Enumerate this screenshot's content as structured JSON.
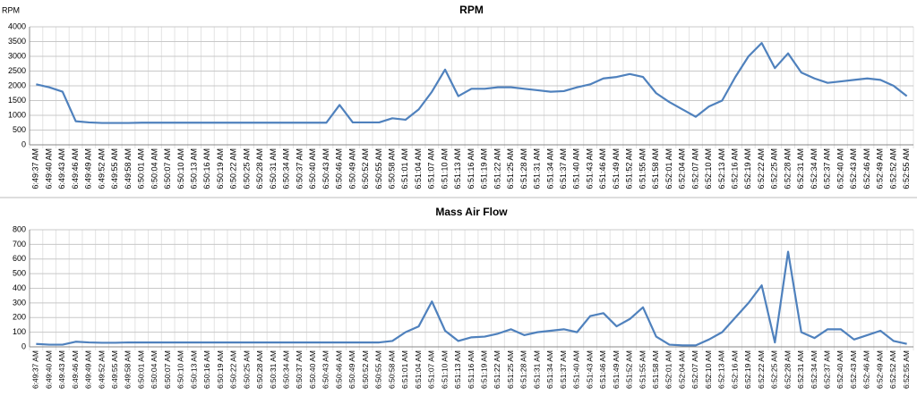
{
  "chart_data": [
    {
      "type": "line",
      "title": "RPM",
      "y_label": "RPM",
      "categories": [
        "6:49:37 AM",
        "6:49:40 AM",
        "6:49:43 AM",
        "6:49:46 AM",
        "6:49:49 AM",
        "6:49:52 AM",
        "6:49:55 AM",
        "6:49:58 AM",
        "6:50:01 AM",
        "6:50:04 AM",
        "6:50:07 AM",
        "6:50:10 AM",
        "6:50:13 AM",
        "6:50:16 AM",
        "6:50:19 AM",
        "6:50:22 AM",
        "6:50:25 AM",
        "6:50:28 AM",
        "6:50:31 AM",
        "6:50:34 AM",
        "6:50:37 AM",
        "6:50:40 AM",
        "6:50:43 AM",
        "6:50:46 AM",
        "6:50:49 AM",
        "6:50:52 AM",
        "6:50:55 AM",
        "6:50:58 AM",
        "6:51:01 AM",
        "6:51:04 AM",
        "6:51:07 AM",
        "6:51:10 AM",
        "6:51:13 AM",
        "6:51:16 AM",
        "6:51:19 AM",
        "6:51:22 AM",
        "6:51:25 AM",
        "6:51:28 AM",
        "6:51:31 AM",
        "6:51:34 AM",
        "6:51:37 AM",
        "6:51:40 AM",
        "6:51:43 AM",
        "6:51:46 AM",
        "6:51:49 AM",
        "6:51:52 AM",
        "6:51:55 AM",
        "6:51:58 AM",
        "6:52:01 AM",
        "6:52:04 AM",
        "6:52:07 AM",
        "6:52:10 AM",
        "6:52:13 AM",
        "6:52:16 AM",
        "6:52:19 AM",
        "6:52:22 AM",
        "6:52:25 AM",
        "6:52:28 AM",
        "6:52:31 AM",
        "6:52:34 AM",
        "6:52:37 AM",
        "6:52:40 AM",
        "6:52:43 AM",
        "6:52:46 AM",
        "6:52:49 AM",
        "6:52:52 AM",
        "6:52:55 AM"
      ],
      "series": [
        {
          "name": "RPM",
          "color": "#4f81bd",
          "values": [
            2050,
            1950,
            1800,
            800,
            760,
            740,
            740,
            740,
            750,
            750,
            750,
            750,
            750,
            750,
            750,
            750,
            750,
            750,
            750,
            750,
            750,
            750,
            750,
            1350,
            760,
            760,
            760,
            900,
            850,
            1200,
            1800,
            2550,
            1650,
            1900,
            1900,
            1950,
            1950,
            1900,
            1850,
            1800,
            1820,
            1950,
            2050,
            2250,
            2300,
            2400,
            2300,
            1750,
            1450,
            1200,
            950,
            1300,
            1500,
            2300,
            3000,
            3450,
            2600,
            3100,
            2450,
            2250,
            2100,
            2150,
            2200,
            2250,
            2200,
            2000,
            1650
          ]
        }
      ],
      "ylim": [
        0,
        4000
      ],
      "yticks": [
        0,
        500,
        1000,
        1500,
        2000,
        2500,
        3000,
        3500,
        4000
      ],
      "grid": true
    },
    {
      "type": "line",
      "title": "Mass Air Flow",
      "categories": [
        "6:49:37 AM",
        "6:49:40 AM",
        "6:49:43 AM",
        "6:49:46 AM",
        "6:49:49 AM",
        "6:49:52 AM",
        "6:49:55 AM",
        "6:49:58 AM",
        "6:50:01 AM",
        "6:50:04 AM",
        "6:50:07 AM",
        "6:50:10 AM",
        "6:50:13 AM",
        "6:50:16 AM",
        "6:50:19 AM",
        "6:50:22 AM",
        "6:50:25 AM",
        "6:50:28 AM",
        "6:50:31 AM",
        "6:50:34 AM",
        "6:50:37 AM",
        "6:50:40 AM",
        "6:50:43 AM",
        "6:50:46 AM",
        "6:50:49 AM",
        "6:50:52 AM",
        "6:50:55 AM",
        "6:50:58 AM",
        "6:51:01 AM",
        "6:51:04 AM",
        "6:51:07 AM",
        "6:51:10 AM",
        "6:51:13 AM",
        "6:51:16 AM",
        "6:51:19 AM",
        "6:51:22 AM",
        "6:51:25 AM",
        "6:51:28 AM",
        "6:51:31 AM",
        "6:51:34 AM",
        "6:51:37 AM",
        "6:51:40 AM",
        "6:51:43 AM",
        "6:51:46 AM",
        "6:51:49 AM",
        "6:51:52 AM",
        "6:51:55 AM",
        "6:51:58 AM",
        "6:52:01 AM",
        "6:52:04 AM",
        "6:52:07 AM",
        "6:52:10 AM",
        "6:52:13 AM",
        "6:52:16 AM",
        "6:52:19 AM",
        "6:52:22 AM",
        "6:52:25 AM",
        "6:52:28 AM",
        "6:52:31 AM",
        "6:52:34 AM",
        "6:52:37 AM",
        "6:52:40 AM",
        "6:52:43 AM",
        "6:52:46 AM",
        "6:52:49 AM",
        "6:52:52 AM",
        "6:52:55 AM"
      ],
      "series": [
        {
          "name": "Mass Air Flow",
          "color": "#4f81bd",
          "values": [
            20,
            15,
            15,
            35,
            30,
            28,
            28,
            30,
            30,
            30,
            30,
            30,
            30,
            30,
            30,
            30,
            30,
            30,
            30,
            30,
            30,
            30,
            30,
            30,
            30,
            30,
            30,
            40,
            100,
            140,
            310,
            110,
            40,
            65,
            70,
            90,
            120,
            80,
            100,
            110,
            120,
            100,
            210,
            230,
            140,
            190,
            270,
            70,
            15,
            10,
            10,
            50,
            100,
            200,
            300,
            420,
            30,
            650,
            100,
            60,
            120,
            120,
            50,
            80,
            110,
            40,
            20
          ]
        }
      ],
      "ylim": [
        0,
        800
      ],
      "yticks": [
        0,
        100,
        200,
        300,
        400,
        500,
        600,
        700,
        800
      ],
      "grid": true
    }
  ]
}
